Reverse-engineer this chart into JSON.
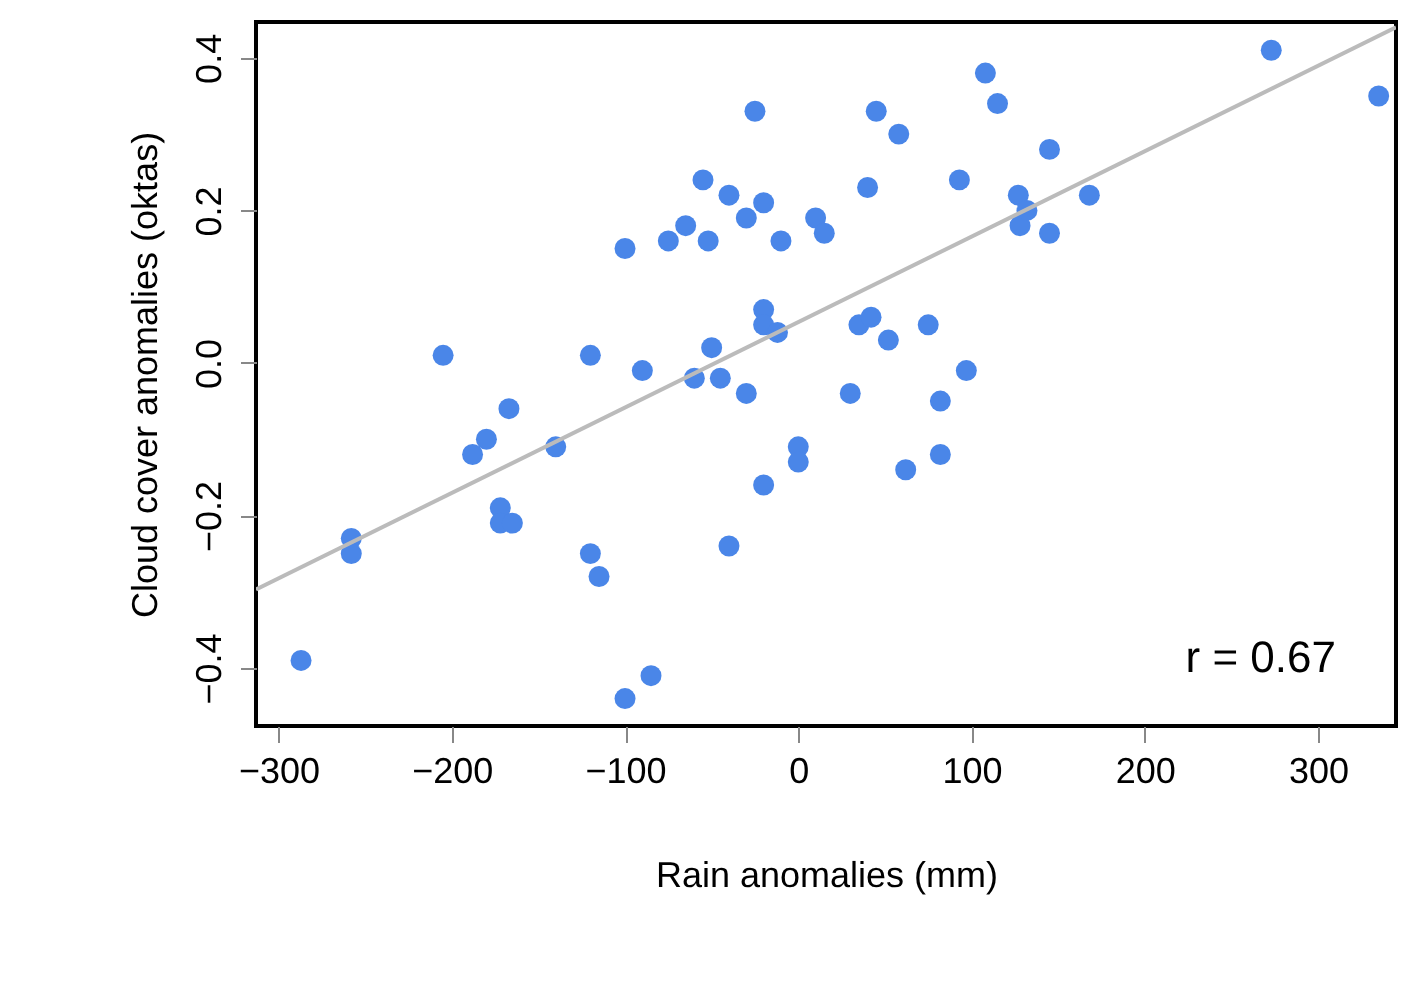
{
  "chart_data": {
    "type": "scatter",
    "xlabel": "Rain anomalies (mm)",
    "ylabel": "Cloud cover anomalies (oktas)",
    "annotations": [
      "r = 0.67"
    ],
    "xlim": [
      -313,
      345
    ],
    "ylim": [
      -0.476,
      0.447
    ],
    "xticks": [
      -300,
      -200,
      -100,
      0,
      100,
      200,
      300
    ],
    "yticks": [
      -0.4,
      -0.2,
      {
        "value": 0,
        "label": "0.0"
      },
      0.2,
      0.4
    ],
    "grid": false,
    "series": [
      {
        "marker": "circle",
        "color": "#4a86e8",
        "x": [
          -287,
          -258,
          -258,
          -205,
          -188,
          -180,
          -172,
          -172,
          -167,
          -165,
          -140,
          -120,
          -120,
          -115,
          -100,
          -100,
          -90,
          -85,
          -75,
          -65,
          -60,
          -55,
          -52,
          -50,
          -45,
          -40,
          -40,
          -30,
          -30,
          -25,
          -20,
          -20,
          -20,
          -20,
          -12,
          -10,
          0,
          0,
          10,
          15,
          30,
          35,
          40,
          42,
          45,
          52,
          58,
          62,
          75,
          82,
          82,
          93,
          97,
          108,
          115,
          127,
          128,
          132,
          145,
          145,
          168,
          273,
          335
        ],
        "values": [
          -0.39,
          -0.23,
          -0.25,
          0.01,
          -0.12,
          -0.1,
          -0.19,
          -0.21,
          -0.06,
          -0.21,
          -0.11,
          0.01,
          -0.25,
          -0.28,
          0.15,
          -0.44,
          -0.01,
          -0.41,
          0.16,
          0.18,
          -0.02,
          0.24,
          0.16,
          0.02,
          -0.02,
          0.22,
          -0.24,
          -0.04,
          0.19,
          0.33,
          0.21,
          0.07,
          0.05,
          -0.16,
          0.04,
          0.16,
          -0.11,
          -0.13,
          0.19,
          0.17,
          -0.04,
          0.05,
          0.23,
          0.06,
          0.33,
          0.03,
          0.3,
          -0.14,
          0.05,
          -0.12,
          -0.05,
          0.24,
          -0.01,
          0.38,
          0.34,
          0.22,
          0.18,
          0.2,
          0.28,
          0.17,
          0.22,
          0.41,
          0.35
        ]
      },
      {
        "type": "line",
        "color": "#bbbbbb",
        "x": [
          -313,
          345
        ],
        "values": [
          -0.297,
          0.44
        ]
      }
    ]
  }
}
